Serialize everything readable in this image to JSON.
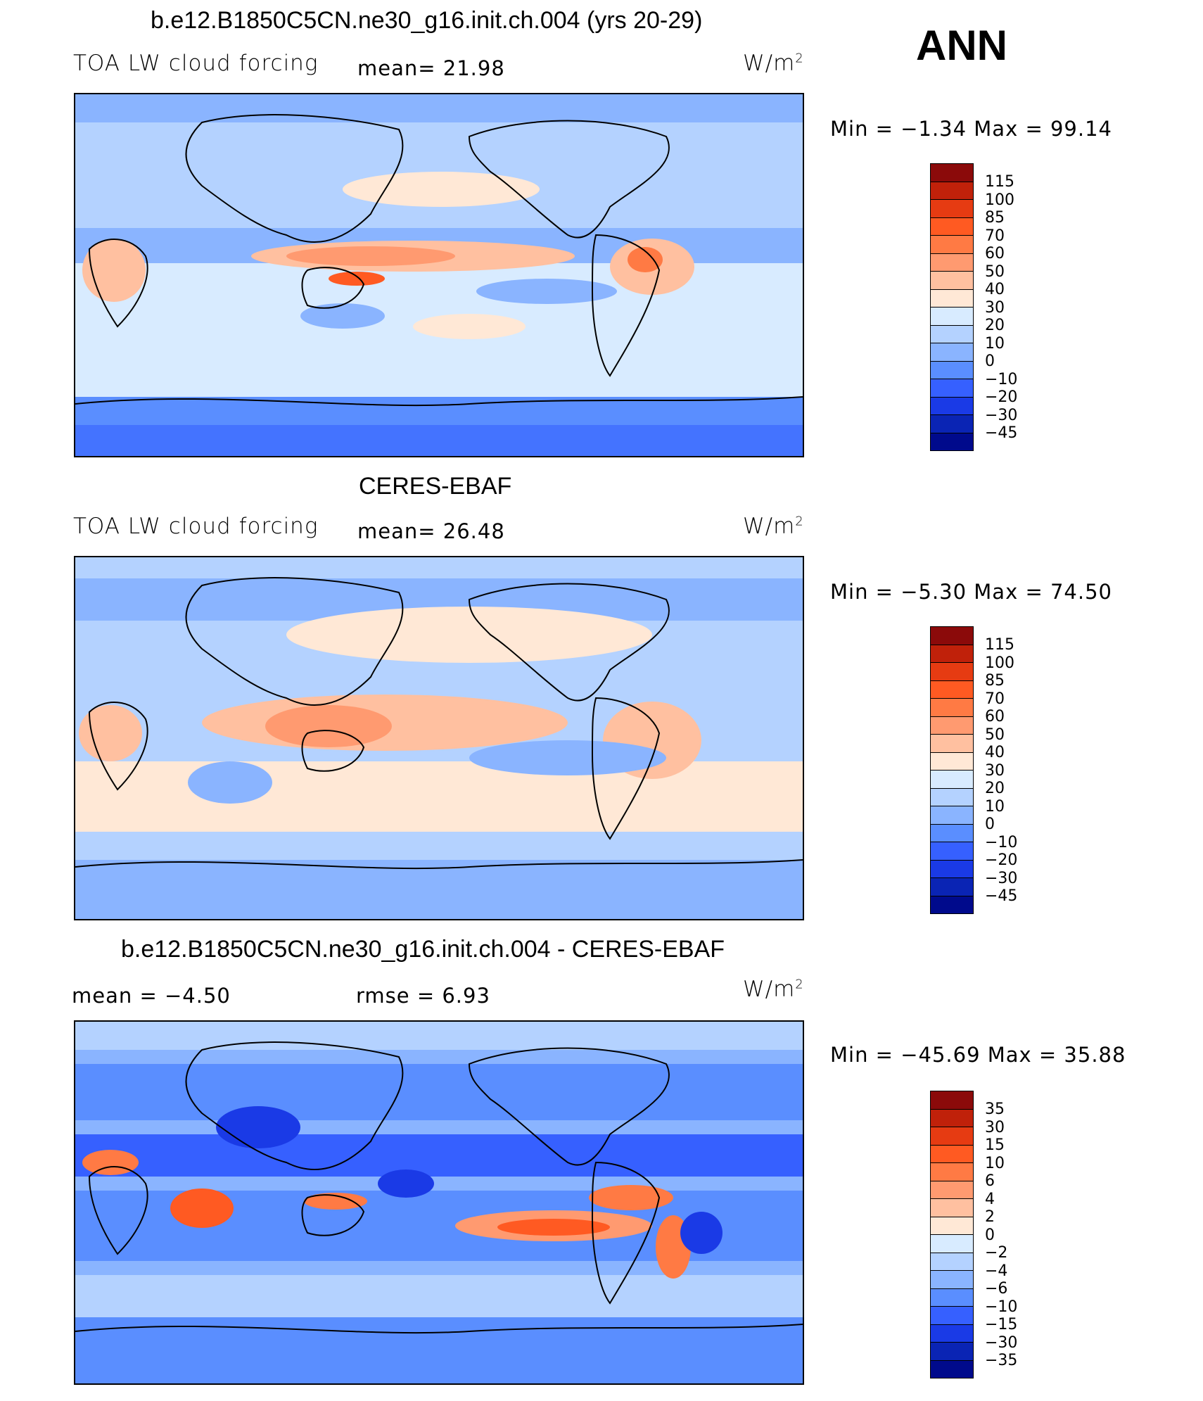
{
  "season": "ANN",
  "panels": [
    {
      "title": "b.e12.B1850C5CN.ne30_g16.init.ch.004 (yrs 20-29)",
      "left_label": "TOA LW cloud forcing",
      "mid_label": "mean=  21.98",
      "units": "W/m",
      "units_sup": "2",
      "minmax": "Min =  −1.34 Max =  99.14",
      "colorbar": {
        "colors": [
          "#8b0a0a",
          "#c0210a",
          "#e63b12",
          "#ff5a22",
          "#ff7a44",
          "#ff9a70",
          "#ffc0a0",
          "#ffe8d6",
          "#d8ebff",
          "#b4d2ff",
          "#8ab4ff",
          "#5a8eff",
          "#3660ff",
          "#1a3ae6",
          "#0a24b4",
          "#000a8c"
        ],
        "labels": [
          "115",
          "100",
          "85",
          "70",
          "60",
          "50",
          "40",
          "30",
          "20",
          "10",
          "0",
          "−10",
          "−20",
          "−30",
          "−45"
        ]
      }
    },
    {
      "title": "CERES-EBAF",
      "left_label": "TOA LW cloud forcing",
      "mid_label": "mean=  26.48",
      "units": "W/m",
      "units_sup": "2",
      "minmax": "Min =  −5.30 Max =  74.50",
      "colorbar": {
        "colors": [
          "#8b0a0a",
          "#c0210a",
          "#e63b12",
          "#ff5a22",
          "#ff7a44",
          "#ff9a70",
          "#ffc0a0",
          "#ffe8d6",
          "#d8ebff",
          "#b4d2ff",
          "#8ab4ff",
          "#5a8eff",
          "#3660ff",
          "#1a3ae6",
          "#0a24b4",
          "#000a8c"
        ],
        "labels": [
          "115",
          "100",
          "85",
          "70",
          "60",
          "50",
          "40",
          "30",
          "20",
          "10",
          "0",
          "−10",
          "−20",
          "−30",
          "−45"
        ]
      }
    },
    {
      "title": "b.e12.B1850C5CN.ne30_g16.init.ch.004 - CERES-EBAF",
      "left_label": "mean =   −4.50",
      "mid_label": "rmse =    6.93",
      "units": "W/m",
      "units_sup": "2",
      "minmax": "Min = −45.69 Max =   35.88",
      "colorbar": {
        "colors": [
          "#8b0a0a",
          "#c0210a",
          "#e63b12",
          "#ff5a22",
          "#ff7a44",
          "#ff9a70",
          "#ffc0a0",
          "#ffe8d6",
          "#d8ebff",
          "#b4d2ff",
          "#8ab4ff",
          "#5a8eff",
          "#3660ff",
          "#1a3ae6",
          "#0a24b4",
          "#000a8c"
        ],
        "labels": [
          "35",
          "30",
          "15",
          "10",
          "6",
          "4",
          "2",
          "0",
          "−2",
          "−4",
          "−6",
          "−10",
          "−15",
          "−30",
          "−35"
        ]
      }
    }
  ]
}
